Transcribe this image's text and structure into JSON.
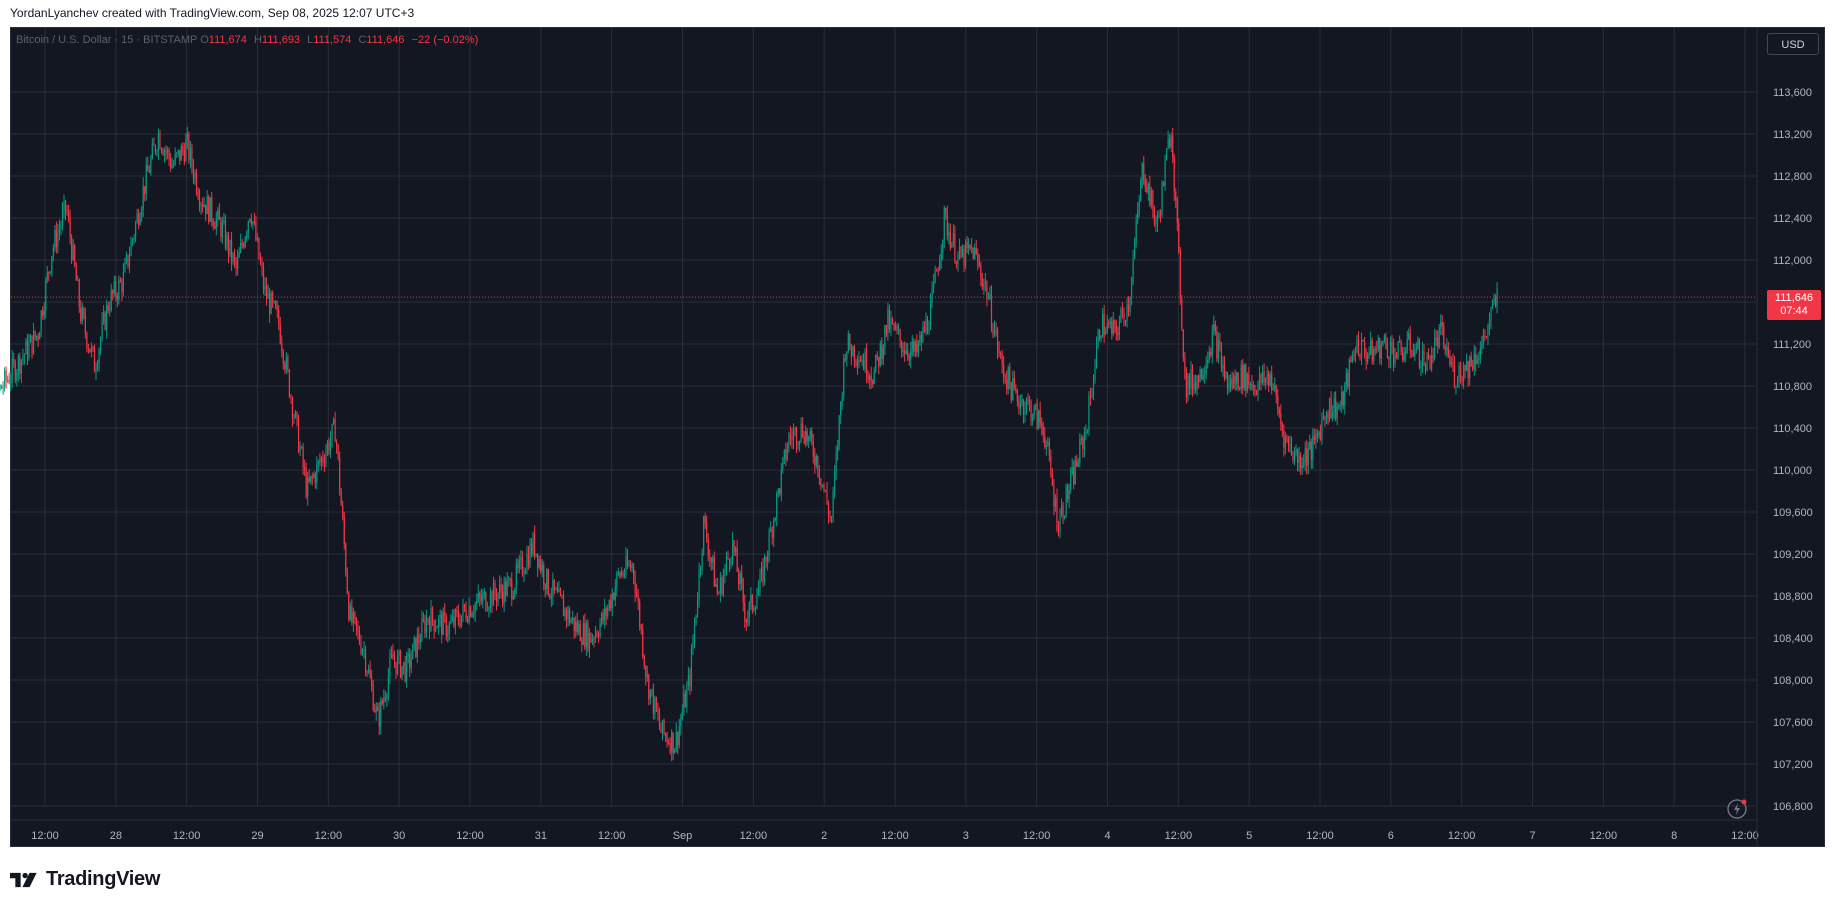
{
  "header": {
    "attribution": "YordanLyanchev created with TradingView.com, Sep 08, 2025 12:07 UTC+3"
  },
  "legend": {
    "symbol": "Bitcoin / U.S. Dollar · 15 · BITSTAMP",
    "o_label": "O",
    "o_value": "111,674",
    "h_label": "H",
    "h_value": "111,693",
    "l_label": "L",
    "l_value": "111,574",
    "c_label": "C",
    "c_value": "111,646",
    "change": "−22 (−0.02%)"
  },
  "currency_button": "USD",
  "last_price": {
    "price": "111,646",
    "countdown": "07:44"
  },
  "brand": {
    "name": "TradingView"
  },
  "colors": {
    "background": "#131722",
    "grid": "#2a2e39",
    "up": "#089981",
    "down": "#f23645",
    "axis_text": "#b2b5be"
  },
  "icons": {
    "logo": "tradingview-logo-icon",
    "nav": "lightning-nav-icon"
  },
  "chart_data": {
    "type": "candlestick",
    "title": "",
    "ylabel": "",
    "ylim": [
      106700,
      114100
    ],
    "yticks": [
      106800,
      107200,
      107600,
      108000,
      108400,
      108800,
      109200,
      109600,
      110000,
      110400,
      110800,
      111200,
      111600,
      112000,
      112400,
      112800,
      113200,
      113600
    ],
    "ytick_labels": [
      "106,800",
      "107,200",
      "107,600",
      "108,000",
      "108,400",
      "108,800",
      "109,200",
      "109,600",
      "110,000",
      "110,400",
      "110,800",
      "111,200",
      "111,600",
      "112,000",
      "112,400",
      "112,800",
      "113,200",
      "113,600"
    ],
    "xlim": [
      0,
      12.4
    ],
    "xticks": [
      {
        "x": 0.5,
        "label": "12:00"
      },
      {
        "x": 1.0,
        "label": "28"
      },
      {
        "x": 1.5,
        "label": "12:00"
      },
      {
        "x": 2.0,
        "label": "29"
      },
      {
        "x": 2.5,
        "label": "12:00"
      },
      {
        "x": 3.0,
        "label": "30"
      },
      {
        "x": 3.5,
        "label": "12:00"
      },
      {
        "x": 4.0,
        "label": "31"
      },
      {
        "x": 4.5,
        "label": "12:00"
      },
      {
        "x": 5.0,
        "label": "Sep"
      },
      {
        "x": 5.5,
        "label": "12:00"
      },
      {
        "x": 6.0,
        "label": "2"
      },
      {
        "x": 6.5,
        "label": "12:00"
      },
      {
        "x": 7.0,
        "label": "3"
      },
      {
        "x": 7.5,
        "label": "12:00"
      },
      {
        "x": 8.0,
        "label": "4"
      },
      {
        "x": 8.5,
        "label": "12:00"
      },
      {
        "x": 9.0,
        "label": "5"
      },
      {
        "x": 9.5,
        "label": "12:00"
      },
      {
        "x": 10.0,
        "label": "6"
      },
      {
        "x": 10.5,
        "label": "12:00"
      },
      {
        "x": 11.0,
        "label": "7"
      },
      {
        "x": 11.5,
        "label": "12:00"
      },
      {
        "x": 12.0,
        "label": "8"
      },
      {
        "x": 12.5,
        "label": "12:00"
      }
    ],
    "last_price": 111646,
    "series": [
      {
        "interval": "15",
        "close_path": [
          [
            0.0,
            111700
          ],
          [
            0.15,
            110700
          ],
          [
            0.3,
            111000
          ],
          [
            0.45,
            111300
          ],
          [
            0.55,
            112100
          ],
          [
            0.65,
            112500
          ],
          [
            0.75,
            111500
          ],
          [
            0.85,
            111000
          ],
          [
            0.95,
            111600
          ],
          [
            1.05,
            111800
          ],
          [
            1.2,
            112700
          ],
          [
            1.3,
            113200
          ],
          [
            1.4,
            112900
          ],
          [
            1.5,
            113100
          ],
          [
            1.6,
            112600
          ],
          [
            1.75,
            112300
          ],
          [
            1.85,
            111900
          ],
          [
            1.95,
            112500
          ],
          [
            2.05,
            111700
          ],
          [
            2.15,
            111400
          ],
          [
            2.25,
            110600
          ],
          [
            2.35,
            109800
          ],
          [
            2.45,
            110100
          ],
          [
            2.55,
            110400
          ],
          [
            2.65,
            108600
          ],
          [
            2.75,
            108300
          ],
          [
            2.85,
            107600
          ],
          [
            2.95,
            108200
          ],
          [
            3.05,
            108100
          ],
          [
            3.2,
            108600
          ],
          [
            3.35,
            108500
          ],
          [
            3.5,
            108700
          ],
          [
            3.65,
            108800
          ],
          [
            3.8,
            108900
          ],
          [
            3.95,
            109300
          ],
          [
            4.05,
            108900
          ],
          [
            4.15,
            108700
          ],
          [
            4.25,
            108500
          ],
          [
            4.35,
            108400
          ],
          [
            4.45,
            108600
          ],
          [
            4.55,
            109000
          ],
          [
            4.65,
            109100
          ],
          [
            4.75,
            108000
          ],
          [
            4.85,
            107500
          ],
          [
            4.95,
            107400
          ],
          [
            5.05,
            108000
          ],
          [
            5.15,
            109500
          ],
          [
            5.25,
            108800
          ],
          [
            5.35,
            109300
          ],
          [
            5.45,
            108600
          ],
          [
            5.55,
            108900
          ],
          [
            5.65,
            109600
          ],
          [
            5.75,
            110300
          ],
          [
            5.85,
            110400
          ],
          [
            5.95,
            110100
          ],
          [
            6.05,
            109500
          ],
          [
            6.15,
            111200
          ],
          [
            6.25,
            111100
          ],
          [
            6.35,
            110900
          ],
          [
            6.45,
            111400
          ],
          [
            6.55,
            111200
          ],
          [
            6.65,
            111100
          ],
          [
            6.75,
            111500
          ],
          [
            6.85,
            112400
          ],
          [
            6.95,
            112000
          ],
          [
            7.05,
            112100
          ],
          [
            7.15,
            111700
          ],
          [
            7.25,
            111000
          ],
          [
            7.35,
            110700
          ],
          [
            7.45,
            110600
          ],
          [
            7.55,
            110400
          ],
          [
            7.65,
            109500
          ],
          [
            7.75,
            109900
          ],
          [
            7.85,
            110400
          ],
          [
            7.95,
            111400
          ],
          [
            8.05,
            111300
          ],
          [
            8.15,
            111600
          ],
          [
            8.25,
            112900
          ],
          [
            8.35,
            112300
          ],
          [
            8.45,
            113300
          ],
          [
            8.55,
            110800
          ],
          [
            8.65,
            110900
          ],
          [
            8.75,
            111300
          ],
          [
            8.85,
            110800
          ],
          [
            8.95,
            110900
          ],
          [
            9.05,
            110800
          ],
          [
            9.15,
            110900
          ],
          [
            9.25,
            110300
          ],
          [
            9.35,
            110100
          ],
          [
            9.45,
            110200
          ],
          [
            9.55,
            110600
          ],
          [
            9.65,
            110600
          ],
          [
            9.75,
            111200
          ],
          [
            9.85,
            111100
          ],
          [
            9.95,
            111200
          ],
          [
            10.05,
            111100
          ],
          [
            10.15,
            111200
          ],
          [
            10.25,
            111000
          ],
          [
            10.35,
            111300
          ],
          [
            10.45,
            110900
          ],
          [
            10.55,
            111000
          ],
          [
            10.65,
            111200
          ],
          [
            10.75,
            111646
          ]
        ]
      }
    ]
  }
}
